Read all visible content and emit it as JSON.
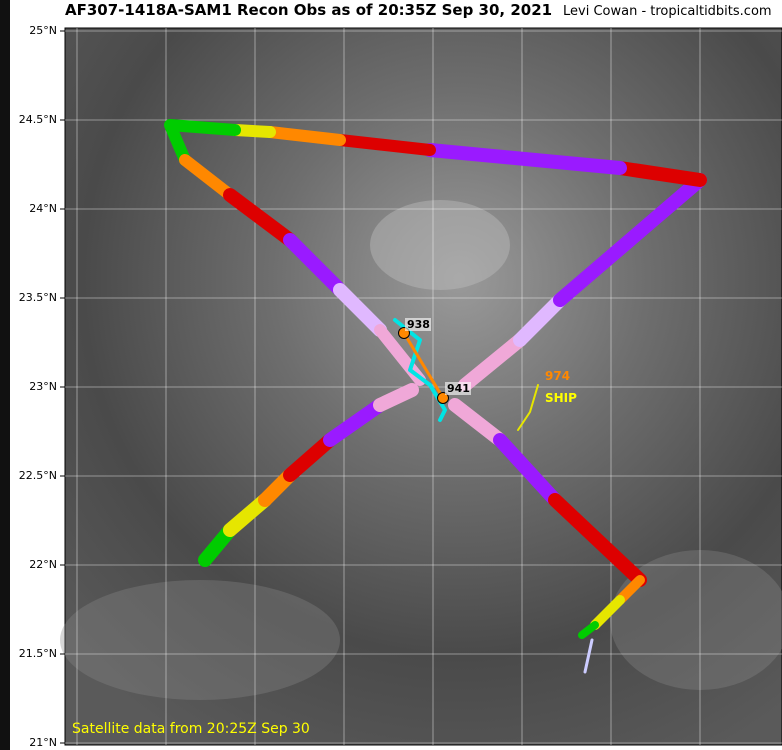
{
  "header": {
    "title": "AF307-1418A-SAM1 Recon Obs as of 20:35Z Sep 30, 2021",
    "credit": "Levi Cowan - tropicaltidbits.com"
  },
  "map": {
    "lat_labels": [
      "25°N",
      "24.5°N",
      "24°N",
      "23.5°N",
      "23°N",
      "22.5°N",
      "22°N",
      "21.5°N",
      "21°N"
    ],
    "annotations": {
      "pressure_1": "938",
      "pressure_2": "941",
      "pressure_3": "974",
      "ship": "SHIP"
    },
    "satellite_note": "Satellite data from 20:25Z Sep 30"
  }
}
